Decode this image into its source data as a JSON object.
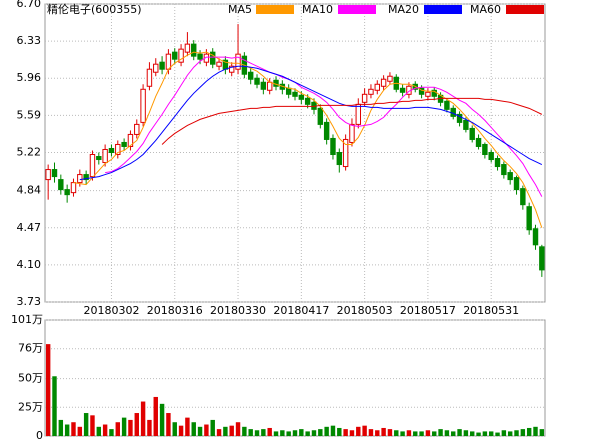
{
  "chart_data": {
    "type": "candlestick",
    "title": "精伦电子(600355)",
    "categories": [
      null,
      null,
      null,
      null,
      null,
      null,
      null,
      null,
      null,
      null,
      "20180302",
      null,
      null,
      null,
      null,
      null,
      null,
      null,
      null,
      null,
      "20180316",
      null,
      null,
      null,
      null,
      null,
      null,
      null,
      null,
      null,
      "20180330",
      null,
      null,
      null,
      null,
      null,
      null,
      null,
      null,
      null,
      "20180417",
      null,
      null,
      null,
      null,
      null,
      null,
      null,
      null,
      null,
      "20180503",
      null,
      null,
      null,
      null,
      null,
      null,
      null,
      null,
      null,
      "20180517",
      null,
      null,
      null,
      null,
      null,
      null,
      null,
      null,
      null,
      "20180531",
      null,
      null,
      null,
      null,
      null,
      null,
      null,
      null
    ],
    "open": [
      4.95,
      5.05,
      4.95,
      4.85,
      4.82,
      4.92,
      5.0,
      4.98,
      5.18,
      5.12,
      5.26,
      5.2,
      5.32,
      5.28,
      5.4,
      5.52,
      5.88,
      6.02,
      6.12,
      6.05,
      6.22,
      6.12,
      6.22,
      6.3,
      6.2,
      6.12,
      6.22,
      6.08,
      6.14,
      6.02,
      6.05,
      6.18,
      6.02,
      5.96,
      5.92,
      5.84,
      5.94,
      5.9,
      5.86,
      5.82,
      5.79,
      5.76,
      5.72,
      5.66,
      5.52,
      5.36,
      5.22,
      5.08,
      5.32,
      5.5,
      5.72,
      5.8,
      5.84,
      5.88,
      5.93,
      5.97,
      5.86,
      5.8,
      5.9,
      5.86,
      5.78,
      5.84,
      5.79,
      5.73,
      5.66,
      5.6,
      5.54,
      5.46,
      5.36,
      5.3,
      5.22,
      5.16,
      5.1,
      5.02,
      4.97,
      4.86,
      4.68,
      4.46,
      4.28
    ],
    "high": [
      5.1,
      5.12,
      5.0,
      4.9,
      4.96,
      5.05,
      5.04,
      5.24,
      5.22,
      5.3,
      5.3,
      5.34,
      5.36,
      5.44,
      5.55,
      5.9,
      6.12,
      6.16,
      6.18,
      6.25,
      6.26,
      6.3,
      6.42,
      6.34,
      6.24,
      6.25,
      6.26,
      6.16,
      6.18,
      6.12,
      6.5,
      6.22,
      6.06,
      6.0,
      5.96,
      5.96,
      5.98,
      5.94,
      5.9,
      5.86,
      5.83,
      5.8,
      5.76,
      5.7,
      5.56,
      5.4,
      5.26,
      5.4,
      5.56,
      5.76,
      5.86,
      5.9,
      5.94,
      5.99,
      6.02,
      6.0,
      5.9,
      5.92,
      5.93,
      5.89,
      5.86,
      5.87,
      5.82,
      5.76,
      5.69,
      5.63,
      5.57,
      5.49,
      5.4,
      5.32,
      5.25,
      5.19,
      5.13,
      5.05,
      4.99,
      4.89,
      4.72,
      4.5,
      4.3
    ],
    "low": [
      4.75,
      4.92,
      4.8,
      4.72,
      4.78,
      4.88,
      4.9,
      4.94,
      5.1,
      5.08,
      5.18,
      5.16,
      5.24,
      5.24,
      5.36,
      5.48,
      5.84,
      5.98,
      6.0,
      6.0,
      6.1,
      6.08,
      6.18,
      6.14,
      6.1,
      6.08,
      6.06,
      6.04,
      6.0,
      5.98,
      6.0,
      5.96,
      5.9,
      5.86,
      5.8,
      5.8,
      5.84,
      5.8,
      5.76,
      5.74,
      5.7,
      5.66,
      5.6,
      5.46,
      5.3,
      5.15,
      5.02,
      5.04,
      5.28,
      5.46,
      5.68,
      5.76,
      5.8,
      5.84,
      5.9,
      5.82,
      5.78,
      5.76,
      5.82,
      5.76,
      5.74,
      5.74,
      5.68,
      5.62,
      5.55,
      5.48,
      5.42,
      5.32,
      5.25,
      5.16,
      5.12,
      5.04,
      4.96,
      4.9,
      4.8,
      4.65,
      4.4,
      4.25,
      3.98
    ],
    "close": [
      5.05,
      4.98,
      4.85,
      4.8,
      4.92,
      5.0,
      4.95,
      5.2,
      5.15,
      5.25,
      5.22,
      5.3,
      5.28,
      5.4,
      5.5,
      5.85,
      6.05,
      6.1,
      6.05,
      6.2,
      6.15,
      6.25,
      6.3,
      6.18,
      6.15,
      6.2,
      6.1,
      6.12,
      6.05,
      6.08,
      6.2,
      6.0,
      5.95,
      5.9,
      5.85,
      5.92,
      5.88,
      5.85,
      5.8,
      5.78,
      5.75,
      5.7,
      5.65,
      5.5,
      5.35,
      5.2,
      5.1,
      5.35,
      5.5,
      5.7,
      5.8,
      5.85,
      5.9,
      5.95,
      5.98,
      5.85,
      5.82,
      5.88,
      5.85,
      5.8,
      5.82,
      5.78,
      5.72,
      5.65,
      5.58,
      5.52,
      5.45,
      5.35,
      5.28,
      5.2,
      5.15,
      5.08,
      5.0,
      4.95,
      4.85,
      4.7,
      4.45,
      4.3,
      4.05
    ],
    "up_color": "#e00000",
    "down_color": "#008800",
    "series": [
      {
        "name": "MA5",
        "color": "#ff9900",
        "values": [
          null,
          null,
          null,
          null,
          4.92,
          4.91,
          4.9,
          4.97,
          5.04,
          5.11,
          5.15,
          5.22,
          5.24,
          5.29,
          5.34,
          5.47,
          5.62,
          5.78,
          5.91,
          6.05,
          6.11,
          6.15,
          6.19,
          6.22,
          6.21,
          6.22,
          6.19,
          6.15,
          6.12,
          6.11,
          6.11,
          6.09,
          6.06,
          6.03,
          5.98,
          5.92,
          5.9,
          5.88,
          5.86,
          5.85,
          5.81,
          5.78,
          5.74,
          5.68,
          5.59,
          5.48,
          5.36,
          5.3,
          5.3,
          5.37,
          5.49,
          5.64,
          5.75,
          5.84,
          5.9,
          5.91,
          5.9,
          5.9,
          5.88,
          5.84,
          5.83,
          5.83,
          5.79,
          5.75,
          5.71,
          5.65,
          5.58,
          5.51,
          5.44,
          5.36,
          5.29,
          5.21,
          5.14,
          5.08,
          5.01,
          4.92,
          4.79,
          4.65,
          4.47
        ]
      },
      {
        "name": "MA10",
        "color": "#ff00ff",
        "values": [
          null,
          null,
          null,
          null,
          null,
          null,
          null,
          null,
          null,
          5.02,
          5.03,
          5.06,
          5.11,
          5.17,
          5.23,
          5.31,
          5.42,
          5.51,
          5.6,
          5.7,
          5.79,
          5.89,
          5.99,
          6.07,
          6.13,
          6.17,
          6.17,
          6.17,
          6.17,
          6.16,
          6.17,
          6.14,
          6.11,
          6.08,
          6.05,
          6.02,
          6.0,
          5.97,
          5.95,
          5.92,
          5.87,
          5.84,
          5.81,
          5.77,
          5.72,
          5.65,
          5.57,
          5.52,
          5.49,
          5.48,
          5.49,
          5.5,
          5.53,
          5.57,
          5.64,
          5.7,
          5.77,
          5.83,
          5.86,
          5.87,
          5.87,
          5.87,
          5.85,
          5.82,
          5.78,
          5.74,
          5.71,
          5.65,
          5.6,
          5.54,
          5.47,
          5.4,
          5.33,
          5.26,
          5.19,
          5.11,
          5.0,
          4.9,
          4.78
        ]
      },
      {
        "name": "MA20",
        "color": "#0000ff",
        "values": [
          null,
          null,
          null,
          null,
          null,
          4.95,
          4.96,
          4.97,
          4.98,
          5.0,
          5.02,
          5.05,
          5.08,
          5.11,
          5.15,
          5.2,
          5.27,
          5.34,
          5.42,
          5.5,
          5.58,
          5.66,
          5.74,
          5.81,
          5.87,
          5.93,
          5.98,
          6.02,
          6.05,
          6.07,
          6.08,
          6.08,
          6.07,
          6.06,
          6.04,
          6.02,
          6.0,
          5.98,
          5.95,
          5.92,
          5.89,
          5.86,
          5.83,
          5.8,
          5.77,
          5.74,
          5.71,
          5.69,
          5.68,
          5.68,
          5.68,
          5.67,
          5.67,
          5.66,
          5.66,
          5.66,
          5.66,
          5.66,
          5.67,
          5.67,
          5.67,
          5.66,
          5.65,
          5.63,
          5.61,
          5.58,
          5.55,
          5.52,
          5.48,
          5.44,
          5.4,
          5.36,
          5.32,
          5.28,
          5.24,
          5.2,
          5.16,
          5.13,
          5.1
        ]
      },
      {
        "name": "MA60",
        "color": "#e00000",
        "values": [
          null,
          null,
          null,
          null,
          null,
          null,
          null,
          null,
          null,
          null,
          null,
          null,
          null,
          null,
          null,
          null,
          null,
          null,
          5.3,
          5.36,
          5.41,
          5.45,
          5.49,
          5.52,
          5.55,
          5.57,
          5.59,
          5.61,
          5.62,
          5.63,
          5.64,
          5.65,
          5.66,
          5.66,
          5.67,
          5.67,
          5.68,
          5.68,
          5.68,
          5.68,
          5.68,
          5.68,
          5.68,
          5.69,
          5.69,
          5.69,
          5.69,
          5.69,
          5.69,
          5.7,
          5.7,
          5.7,
          5.71,
          5.71,
          5.72,
          5.72,
          5.73,
          5.73,
          5.74,
          5.74,
          5.75,
          5.75,
          5.76,
          5.76,
          5.76,
          5.76,
          5.76,
          5.76,
          5.76,
          5.75,
          5.75,
          5.74,
          5.73,
          5.72,
          5.7,
          5.68,
          5.66,
          5.63,
          5.6
        ]
      }
    ],
    "ylim": [
      3.73,
      6.7
    ],
    "yticks": [
      {
        "value": 6.7,
        "label": "6.70"
      },
      6.33,
      5.96,
      5.59,
      5.22,
      4.84,
      4.47,
      {
        "value": 4.1,
        "label": "4.10"
      },
      3.73
    ],
    "grid": true,
    "volume": {
      "values": [
        80,
        52,
        14,
        10,
        12,
        8,
        20,
        18,
        8,
        10,
        6,
        12,
        16,
        14,
        20,
        30,
        14,
        34,
        28,
        20,
        12,
        9,
        16,
        12,
        8,
        10,
        14,
        6,
        8,
        9,
        12,
        8,
        6,
        5,
        6,
        7,
        4,
        5,
        4,
        5,
        6,
        4,
        5,
        6,
        8,
        9,
        7,
        6,
        5,
        8,
        9,
        6,
        5,
        7,
        6,
        5,
        4,
        5,
        4,
        4,
        5,
        4,
        6,
        5,
        4,
        6,
        5,
        4,
        3,
        4,
        4,
        3,
        5,
        4,
        5,
        6,
        7,
        8,
        6
      ],
      "ylim": [
        0,
        101
      ],
      "yticks": [
        0,
        {
          "value": 25,
          "label": "25万"
        },
        {
          "value": 50,
          "label": "50万"
        },
        {
          "value": 76,
          "label": "76万"
        },
        {
          "value": 101,
          "label": "101万"
        }
      ]
    }
  }
}
